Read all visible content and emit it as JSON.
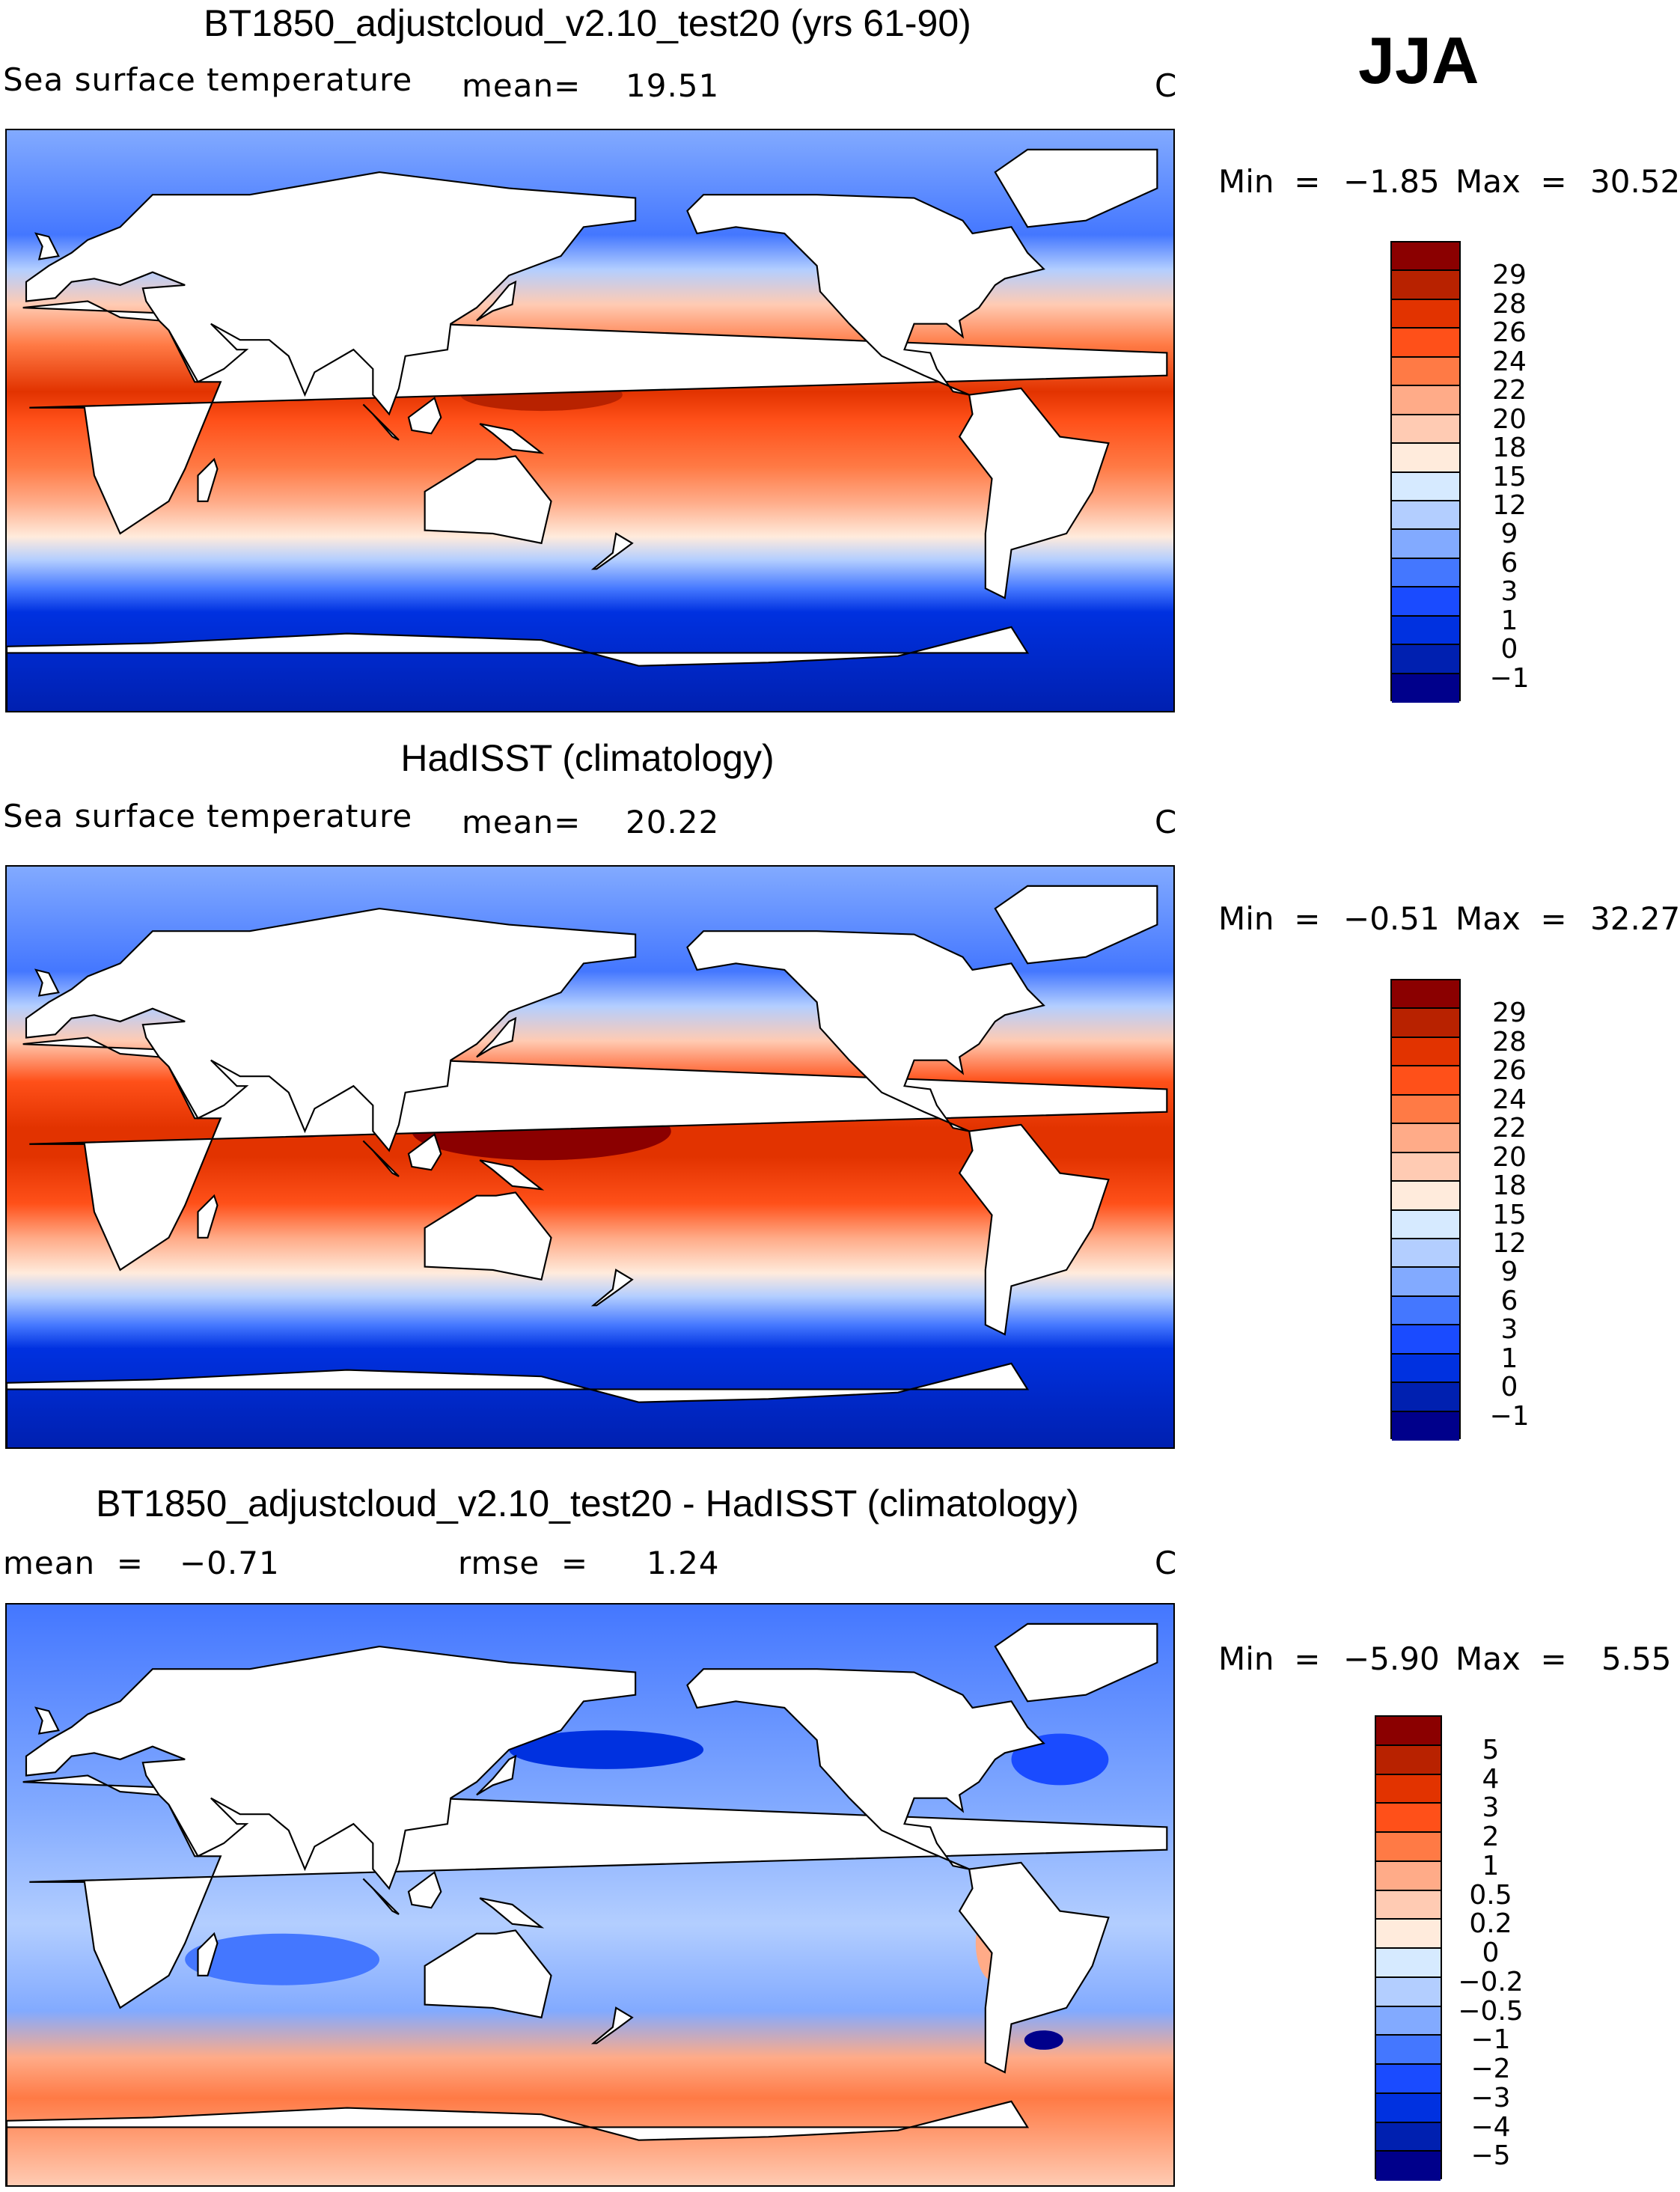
{
  "season": "JJA",
  "units": "C",
  "colors": [
    "#8b0000",
    "#b82200",
    "#e23300",
    "#ff5019",
    "#ff7a45",
    "#ffab88",
    "#ffcbb3",
    "#ffebdc",
    "#d6eaff",
    "#b3ceff",
    "#82aaff",
    "#4477ff",
    "#1a4bff",
    "#0031e0",
    "#0020b0",
    "#00008b"
  ],
  "panels": [
    {
      "title": "BT1850_adjustcloud_v2.10_test20 (yrs 61-90)",
      "variable": "Sea surface temperature",
      "stat1_label": "mean=",
      "stat1_value": "19.51",
      "units": "C",
      "min_label": "Min  =",
      "min": "−1.85",
      "max_label": "Max  =",
      "max": "30.52",
      "levels": [
        "29",
        "28",
        "26",
        "24",
        "22",
        "20",
        "18",
        "15",
        "12",
        "9",
        "6",
        "3",
        "1",
        "0",
        "−1"
      ]
    },
    {
      "title": "HadISST (climatology)",
      "variable": "Sea surface temperature",
      "stat1_label": "mean=",
      "stat1_value": "20.22",
      "units": "C",
      "min_label": "Min  =",
      "min": "−0.51",
      "max_label": "Max  =",
      "max": "32.27",
      "levels": [
        "29",
        "28",
        "26",
        "24",
        "22",
        "20",
        "18",
        "15",
        "12",
        "9",
        "6",
        "3",
        "1",
        "0",
        "−1"
      ]
    },
    {
      "title": "BT1850_adjustcloud_v2.10_test20 - HadISST (climatology)",
      "stat1_label": "mean  =",
      "stat1_value": "−0.71",
      "stat2_label": "rmse  =",
      "stat2_value": "1.24",
      "units": "C",
      "min_label": "Min  =",
      "min": "−5.90",
      "max_label": "Max  =",
      "max": "5.55",
      "levels": [
        "5",
        "4",
        "3",
        "2",
        "1",
        "0.5",
        "0.2",
        "0",
        "−0.2",
        "−0.5",
        "−1",
        "−2",
        "−3",
        "−4",
        "−5"
      ]
    }
  ],
  "chart_data": {
    "type": "heatmap",
    "title": "JJA",
    "panels": [
      {
        "title": "BT1850_adjustcloud_v2.10_test20 (yrs 61-90)",
        "variable": "Sea surface temperature",
        "mean": 19.51,
        "min": -1.85,
        "max": 30.52,
        "units": "C",
        "contour_levels": [
          -1,
          0,
          1,
          3,
          6,
          9,
          12,
          15,
          18,
          20,
          22,
          24,
          26,
          28,
          29
        ]
      },
      {
        "title": "HadISST (climatology)",
        "variable": "Sea surface temperature",
        "mean": 20.22,
        "min": -0.51,
        "max": 32.27,
        "units": "C",
        "contour_levels": [
          -1,
          0,
          1,
          3,
          6,
          9,
          12,
          15,
          18,
          20,
          22,
          24,
          26,
          28,
          29
        ]
      },
      {
        "title": "BT1850_adjustcloud_v2.10_test20 - HadISST (climatology)",
        "mean": -0.71,
        "rmse": 1.24,
        "min": -5.9,
        "max": 5.55,
        "units": "C",
        "contour_levels": [
          -5,
          -4,
          -3,
          -2,
          -1,
          -0.5,
          -0.2,
          0,
          0.2,
          0.5,
          1,
          2,
          3,
          4,
          5
        ]
      }
    ]
  }
}
